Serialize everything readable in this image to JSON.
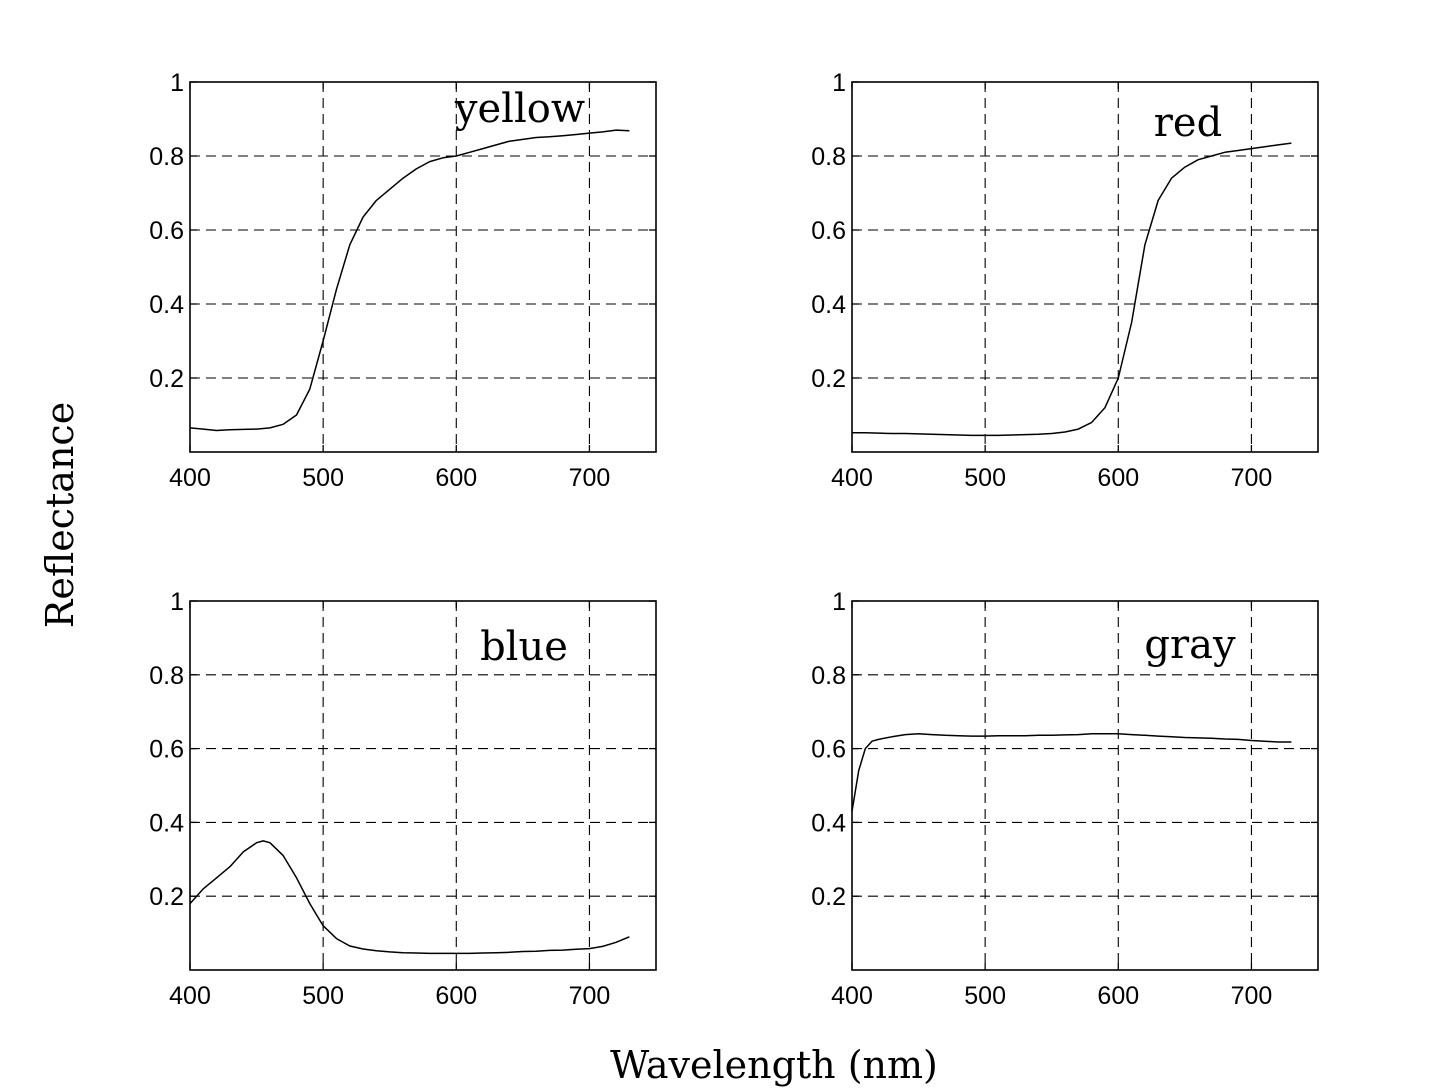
{
  "figure": {
    "ylabel": "Reflectance",
    "xlabel": "Wavelength (nm)"
  },
  "chart_data": [
    {
      "type": "line",
      "label": "yellow",
      "xlim": [
        400,
        750
      ],
      "ylim": [
        0,
        1
      ],
      "xticks": [
        400,
        500,
        600,
        700
      ],
      "yticks": [
        0.2,
        0.4,
        0.6,
        0.8,
        1
      ],
      "ytick_labels": [
        "0.2",
        "0.4",
        "0.6",
        "0.8",
        "1"
      ],
      "grid": true,
      "series": [
        {
          "x": [
            400,
            410,
            420,
            430,
            440,
            450,
            460,
            470,
            480,
            490,
            500,
            510,
            520,
            530,
            540,
            550,
            560,
            570,
            580,
            590,
            600,
            610,
            620,
            630,
            640,
            650,
            660,
            670,
            680,
            690,
            700,
            710,
            720,
            730
          ],
          "values": [
            0.065,
            0.062,
            0.058,
            0.06,
            0.061,
            0.062,
            0.065,
            0.075,
            0.1,
            0.17,
            0.3,
            0.44,
            0.56,
            0.635,
            0.68,
            0.71,
            0.74,
            0.765,
            0.785,
            0.795,
            0.8,
            0.81,
            0.82,
            0.83,
            0.84,
            0.845,
            0.85,
            0.852,
            0.855,
            0.858,
            0.862,
            0.865,
            0.87,
            0.868
          ]
        }
      ]
    },
    {
      "type": "line",
      "label": "red",
      "xlim": [
        400,
        750
      ],
      "ylim": [
        0,
        1
      ],
      "xticks": [
        400,
        500,
        600,
        700
      ],
      "yticks": [
        0.2,
        0.4,
        0.6,
        0.8,
        1
      ],
      "ytick_labels": [
        "0.2",
        "0.4",
        "0.6",
        "0.8",
        "1"
      ],
      "grid": true,
      "series": [
        {
          "x": [
            400,
            410,
            420,
            430,
            440,
            450,
            460,
            470,
            480,
            490,
            500,
            510,
            520,
            530,
            540,
            550,
            560,
            570,
            580,
            590,
            600,
            610,
            620,
            630,
            640,
            650,
            660,
            670,
            680,
            690,
            700,
            710,
            720,
            730
          ],
          "values": [
            0.052,
            0.052,
            0.051,
            0.05,
            0.05,
            0.049,
            0.048,
            0.047,
            0.046,
            0.045,
            0.045,
            0.045,
            0.046,
            0.047,
            0.048,
            0.05,
            0.054,
            0.062,
            0.08,
            0.12,
            0.2,
            0.35,
            0.56,
            0.68,
            0.74,
            0.77,
            0.79,
            0.8,
            0.81,
            0.815,
            0.82,
            0.825,
            0.83,
            0.835
          ]
        }
      ]
    },
    {
      "type": "line",
      "label": "blue",
      "xlim": [
        400,
        750
      ],
      "ylim": [
        0,
        1
      ],
      "xticks": [
        400,
        500,
        600,
        700
      ],
      "yticks": [
        0.2,
        0.4,
        0.6,
        0.8,
        1
      ],
      "ytick_labels": [
        "0.2",
        "0.4",
        "0.6",
        "0.8",
        "1"
      ],
      "grid": true,
      "series": [
        {
          "x": [
            400,
            410,
            420,
            430,
            440,
            450,
            455,
            460,
            470,
            480,
            490,
            500,
            510,
            520,
            530,
            540,
            550,
            560,
            570,
            580,
            590,
            600,
            610,
            620,
            630,
            640,
            650,
            660,
            670,
            680,
            690,
            700,
            710,
            720,
            730
          ],
          "values": [
            0.18,
            0.22,
            0.25,
            0.28,
            0.32,
            0.345,
            0.35,
            0.345,
            0.31,
            0.25,
            0.18,
            0.12,
            0.085,
            0.065,
            0.057,
            0.052,
            0.049,
            0.047,
            0.046,
            0.045,
            0.045,
            0.045,
            0.045,
            0.046,
            0.047,
            0.048,
            0.05,
            0.051,
            0.053,
            0.054,
            0.056,
            0.058,
            0.064,
            0.075,
            0.09
          ]
        }
      ]
    },
    {
      "type": "line",
      "label": "gray",
      "xlim": [
        400,
        750
      ],
      "ylim": [
        0,
        1
      ],
      "xticks": [
        400,
        500,
        600,
        700
      ],
      "yticks": [
        0.2,
        0.4,
        0.6,
        0.8,
        1
      ],
      "ytick_labels": [
        "0.2",
        "0.4",
        "0.6",
        "0.8",
        "1"
      ],
      "grid": true,
      "series": [
        {
          "x": [
            400,
            405,
            410,
            415,
            420,
            430,
            440,
            450,
            460,
            470,
            480,
            490,
            500,
            510,
            520,
            530,
            540,
            550,
            560,
            570,
            580,
            590,
            600,
            610,
            620,
            630,
            640,
            650,
            660,
            670,
            680,
            690,
            700,
            710,
            720,
            730
          ],
          "values": [
            0.43,
            0.54,
            0.6,
            0.62,
            0.625,
            0.632,
            0.638,
            0.64,
            0.638,
            0.636,
            0.635,
            0.634,
            0.634,
            0.635,
            0.635,
            0.635,
            0.636,
            0.636,
            0.637,
            0.638,
            0.64,
            0.64,
            0.64,
            0.638,
            0.636,
            0.634,
            0.632,
            0.63,
            0.629,
            0.628,
            0.626,
            0.625,
            0.622,
            0.62,
            0.618,
            0.618
          ]
        }
      ]
    }
  ]
}
